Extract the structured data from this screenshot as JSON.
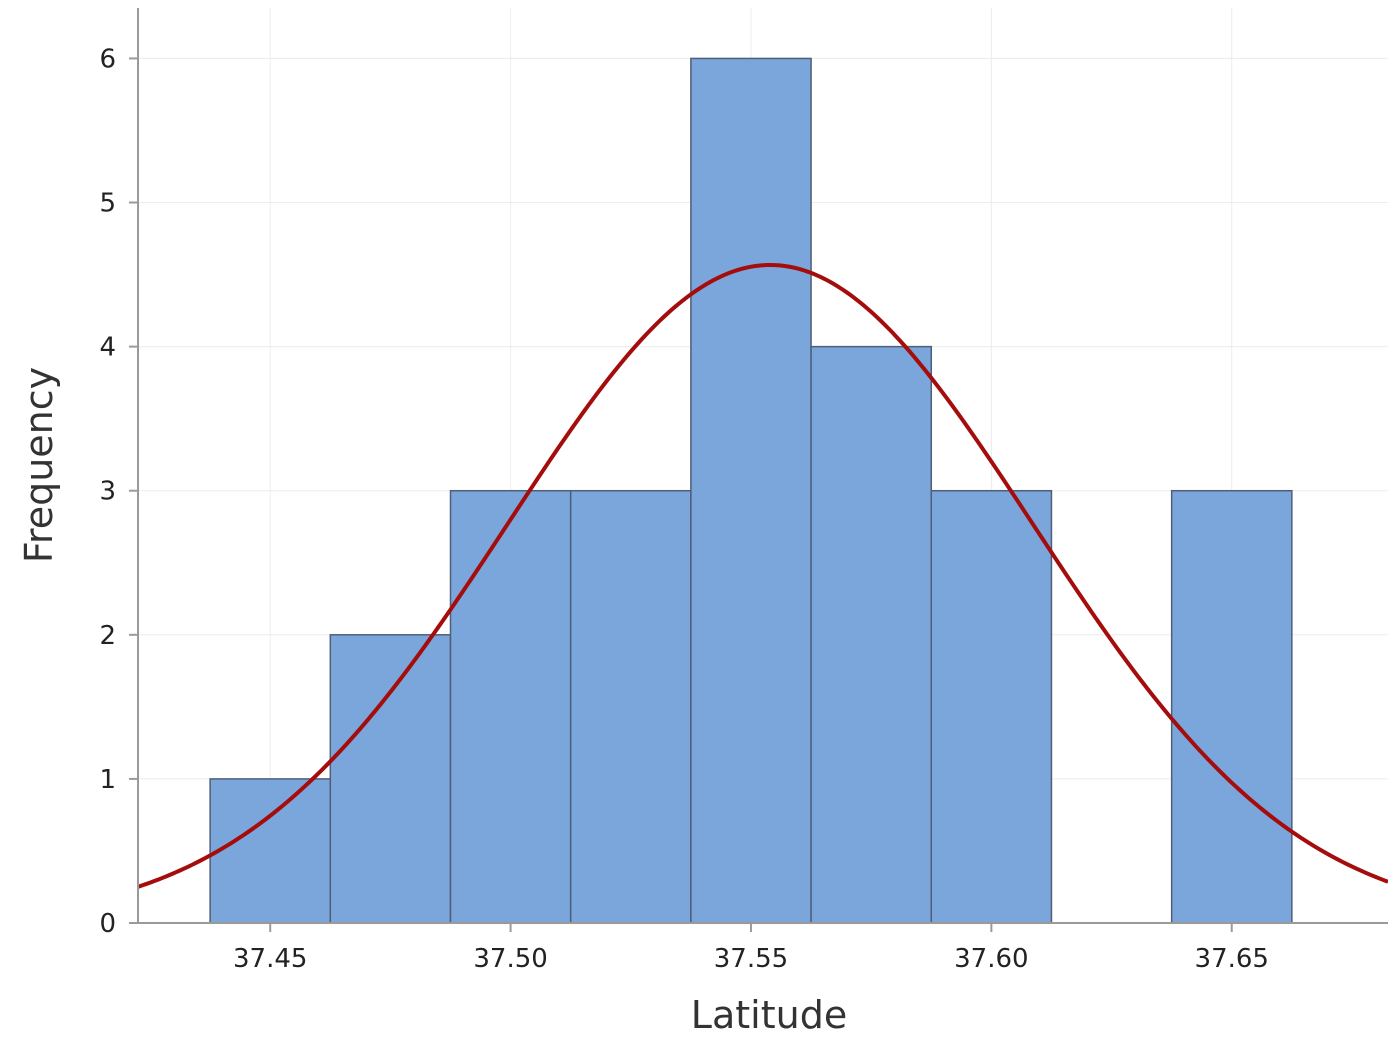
{
  "chart_data": {
    "type": "bar",
    "subtype": "histogram-with-normal-fit",
    "title": "",
    "xlabel": "Latitude",
    "ylabel": "Frequency",
    "xlim": [
      37.4225,
      37.6825
    ],
    "ylim": [
      0,
      6.35
    ],
    "x_ticks": [
      37.45,
      37.5,
      37.55,
      37.6,
      37.65
    ],
    "x_tick_labels": [
      "37.45",
      "37.50",
      "37.55",
      "37.60",
      "37.65"
    ],
    "y_ticks": [
      0,
      1,
      2,
      3,
      4,
      5,
      6
    ],
    "y_tick_labels": [
      "0",
      "1",
      "2",
      "3",
      "4",
      "5",
      "6"
    ],
    "grid": true,
    "bins": [
      {
        "start": 37.4375,
        "end": 37.4625,
        "count": 1
      },
      {
        "start": 37.4625,
        "end": 37.4875,
        "count": 2
      },
      {
        "start": 37.4875,
        "end": 37.5125,
        "count": 3
      },
      {
        "start": 37.5125,
        "end": 37.5375,
        "count": 3
      },
      {
        "start": 37.5375,
        "end": 37.5625,
        "count": 6
      },
      {
        "start": 37.5625,
        "end": 37.5875,
        "count": 4
      },
      {
        "start": 37.5875,
        "end": 37.6125,
        "count": 3
      },
      {
        "start": 37.6125,
        "end": 37.6375,
        "count": 0
      },
      {
        "start": 37.6375,
        "end": 37.6625,
        "count": 3
      }
    ],
    "normal_fit": {
      "mean": 37.554,
      "sd": 0.0546,
      "n": 25,
      "bin_width": 0.025
    },
    "colors": {
      "bar_fill": "#7aa6dc",
      "bar_stroke": "#4f5f78",
      "curve": "#a50d0d",
      "grid": "#ececec",
      "axis": "#9a9a9a"
    }
  }
}
